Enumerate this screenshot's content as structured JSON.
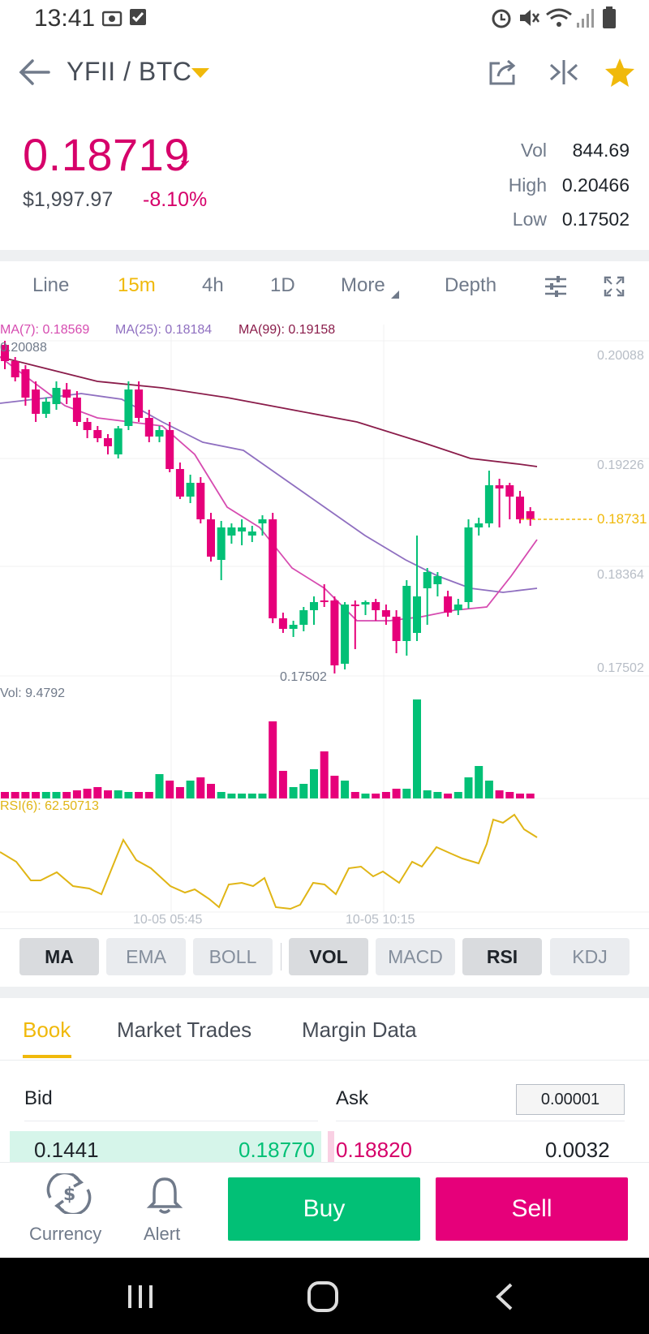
{
  "status": {
    "time": "13:41"
  },
  "header": {
    "pair": "YFII / BTC"
  },
  "ticker": {
    "price": "0.18719",
    "usd": "$1,997.97",
    "change": "-8.10%",
    "vol_label": "Vol",
    "vol_value": "844.69",
    "high_label": "High",
    "high_value": "0.20466",
    "low_label": "Low",
    "low_value": "0.17502"
  },
  "timeframes": [
    "Line",
    "15m",
    "4h",
    "1D",
    "More",
    "Depth"
  ],
  "active_timeframe": "15m",
  "chart": {
    "ma7": "MA(7): 0.18569",
    "ma25": "MA(25): 0.18184",
    "ma99": "MA(99): 0.19158",
    "high_marker": "0.20088",
    "low_marker": "0.17502",
    "current_price": "0.18731",
    "price_ticks": [
      "0.20088",
      "0.19226",
      "0.18364",
      "0.17502"
    ],
    "vol_label": "Vol: 9.4792",
    "rsi_label": "RSI(6): 62.50713",
    "time_ticks": [
      "10-05 05:45",
      "10-05 10:15"
    ],
    "colors": {
      "up": "#02c076",
      "down": "#e6007a",
      "ma7": "#d64bb0",
      "ma25": "#8f6fc0",
      "ma99": "#8a1c4a",
      "rsi": "#e0b515"
    }
  },
  "indicators": [
    {
      "label": "MA",
      "active": true
    },
    {
      "label": "EMA",
      "active": false
    },
    {
      "label": "BOLL",
      "active": false
    },
    {
      "label": "VOL",
      "active": true
    },
    {
      "label": "MACD",
      "active": false
    },
    {
      "label": "RSI",
      "active": true
    },
    {
      "label": "KDJ",
      "active": false
    }
  ],
  "book_tabs": [
    "Book",
    "Market Trades",
    "Margin Data"
  ],
  "orderbook": {
    "bid_label": "Bid",
    "ask_label": "Ask",
    "precision": "0.00001",
    "row": {
      "bid_qty": "0.1441",
      "bid_price": "0.18770",
      "ask_price": "0.18820",
      "ask_qty": "0.0032"
    }
  },
  "bottom": {
    "currency": "Currency",
    "alert": "Alert",
    "buy": "Buy",
    "sell": "Sell"
  }
}
